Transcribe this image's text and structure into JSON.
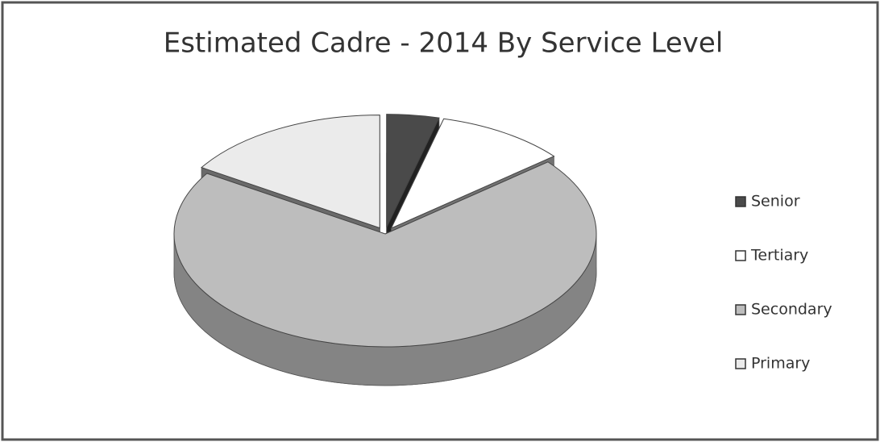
{
  "chart_data": {
    "type": "pie",
    "title": "Estimated  Cadre -  2014  By Service Level",
    "categories": [
      "Senior",
      "Tertiary",
      "Secondary",
      "Primary"
    ],
    "values": [
      4,
      10,
      70,
      16
    ],
    "colors": [
      "#4a4a4a",
      "#ffffff",
      "#bdbdbd",
      "#ebebeb"
    ],
    "legend": "right"
  }
}
